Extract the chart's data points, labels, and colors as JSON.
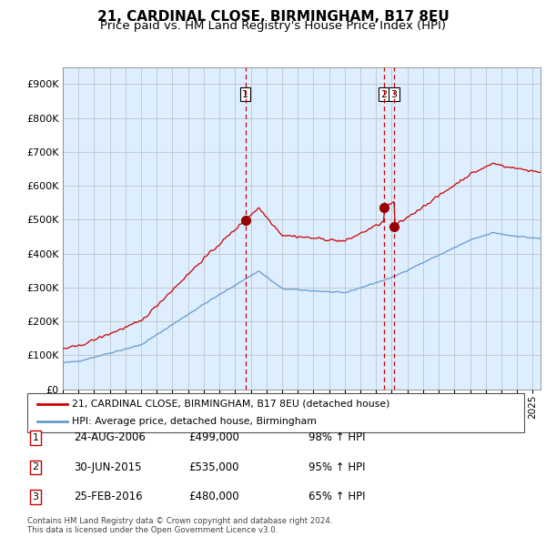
{
  "title": "21, CARDINAL CLOSE, BIRMINGHAM, B17 8EU",
  "subtitle": "Price paid vs. HM Land Registry's House Price Index (HPI)",
  "y_values": [
    0,
    100000,
    200000,
    300000,
    400000,
    500000,
    600000,
    700000,
    800000,
    900000
  ],
  "ylim": [
    0,
    950000
  ],
  "xlim_start": 1995.0,
  "xlim_end": 2025.5,
  "transactions": [
    {
      "num": "1",
      "date_dec": 2006.65,
      "price": 499000
    },
    {
      "num": "2",
      "date_dec": 2015.5,
      "price": 535000
    },
    {
      "num": "3",
      "date_dec": 2016.15,
      "price": 480000
    }
  ],
  "transaction_vlines": [
    2006.65,
    2015.5,
    2016.15
  ],
  "legend_red_label": "21, CARDINAL CLOSE, BIRMINGHAM, B17 8EU (detached house)",
  "legend_blue_label": "HPI: Average price, detached house, Birmingham",
  "table_rows": [
    {
      "num": "1",
      "date": "24-AUG-2006",
      "price": "£499,000",
      "pct": "98% ↑ HPI"
    },
    {
      "num": "2",
      "date": "30-JUN-2015",
      "price": "£535,000",
      "pct": "95% ↑ HPI"
    },
    {
      "num": "3",
      "date": "25-FEB-2016",
      "price": "£480,000",
      "pct": "65% ↑ HPI"
    }
  ],
  "footer": "Contains HM Land Registry data © Crown copyright and database right 2024.\nThis data is licensed under the Open Government Licence v3.0.",
  "red_color": "#cc0000",
  "blue_color": "#6699cc",
  "vline_color": "#cc0000",
  "grid_color": "#bbbbbb",
  "chart_bg": "#ddeeff",
  "title_fontsize": 11,
  "subtitle_fontsize": 9.5,
  "tick_fontsize": 8
}
